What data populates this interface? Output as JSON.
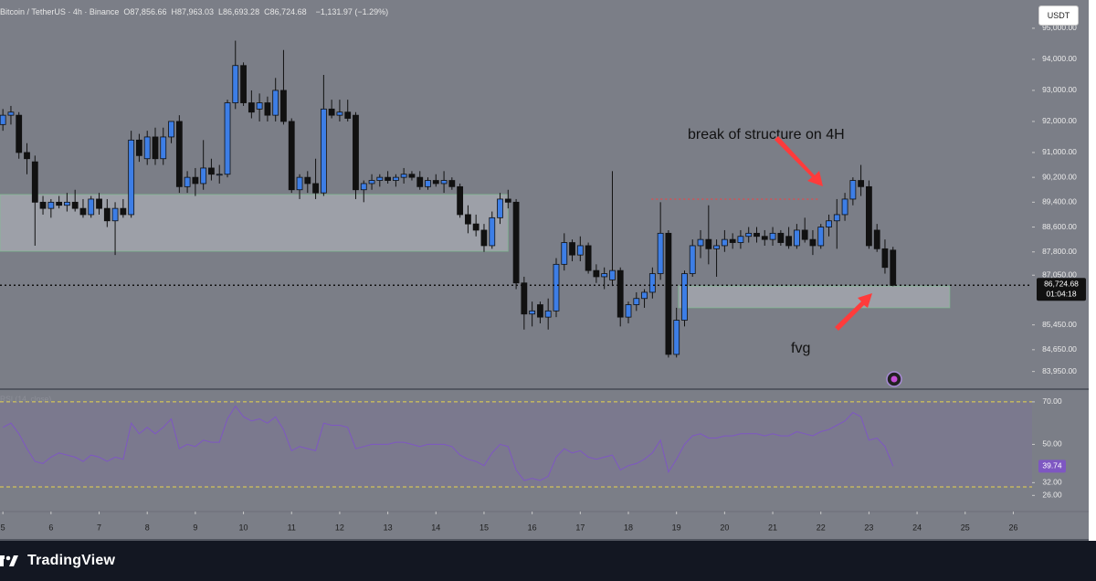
{
  "chart_data": {
    "type": "candlestick",
    "header": {
      "symbol": "Bitcoin / TetherUS · 4h · Binance",
      "ohlc": [
        {
          "label": "O",
          "value": "87,856.66"
        },
        {
          "label": "H",
          "value": "87,963.03"
        },
        {
          "label": "L",
          "value": "86,693.28"
        },
        {
          "label": "C",
          "value": "86,724.68"
        }
      ],
      "change": "−1,131.97 (−1.29%)"
    },
    "currency_button": "USDT",
    "annotations": [
      "break of structure on 4H",
      "fvg"
    ],
    "up_color": "#3d7ee6",
    "down_color": "#111111",
    "x": [
      5,
      5.167,
      5.333,
      5.5,
      5.667,
      5.833,
      6,
      6.167,
      6.333,
      6.5,
      6.667,
      6.833,
      7,
      7.167,
      7.333,
      7.5,
      7.667,
      7.833,
      8,
      8.167,
      8.333,
      8.5,
      8.667,
      8.833,
      9,
      9.167,
      9.333,
      9.5,
      9.667,
      9.833,
      10,
      10.167,
      10.333,
      10.5,
      10.667,
      10.833,
      11,
      11.167,
      11.333,
      11.5,
      11.667,
      11.833,
      12,
      12.167,
      12.333,
      12.5,
      12.667,
      12.833,
      13,
      13.167,
      13.333,
      13.5,
      13.667,
      13.833,
      14,
      14.167,
      14.333,
      14.5,
      14.667,
      14.833,
      15,
      15.167,
      15.333,
      15.5,
      15.667,
      15.833,
      16,
      16.167,
      16.333,
      16.5,
      16.667,
      16.833,
      17,
      17.167,
      17.333,
      17.5,
      17.667,
      17.833,
      18,
      18.167,
      18.333,
      18.5,
      18.667,
      18.833,
      19,
      19.167,
      19.333,
      19.5,
      19.667,
      19.833,
      20,
      20.167,
      20.333,
      20.5,
      20.667,
      20.833,
      21,
      21.167,
      21.333,
      21.5,
      21.667,
      21.833,
      22,
      22.167,
      22.333,
      22.5,
      22.667,
      22.833,
      23,
      23.167,
      23.333,
      23.5
    ],
    "open": [
      91900,
      92200,
      92200,
      91000,
      90700,
      89400,
      89200,
      89400,
      89300,
      89400,
      89200,
      89000,
      89500,
      89200,
      88800,
      89200,
      89000,
      91400,
      90800,
      91500,
      90800,
      91500,
      92000,
      89900,
      90200,
      90000,
      90500,
      90300,
      90300,
      92600,
      93800,
      92600,
      92400,
      92600,
      92200,
      93000,
      92000,
      89800,
      90200,
      90000,
      89700,
      92400,
      92200,
      92300,
      92200,
      89800,
      90000,
      90100,
      90200,
      90100,
      90200,
      90300,
      90200,
      89900,
      90100,
      90000,
      90100,
      89900,
      89000,
      88700,
      88500,
      88000,
      88900,
      89500,
      89400,
      86800,
      85800,
      86100,
      85700,
      85900,
      87400,
      88100,
      87700,
      88000,
      87200,
      87000,
      86900,
      87200,
      85700,
      86100,
      86300,
      86500,
      87100,
      88400,
      84500,
      85600,
      87100,
      88000,
      88200,
      87900,
      88000,
      88200,
      88100,
      88300,
      88400,
      88300,
      88200,
      88400,
      88300,
      88000,
      88500,
      88200,
      88000,
      88600,
      88800,
      89000,
      89500,
      90100,
      89900,
      88500,
      87900,
      87856.66
    ],
    "high": [
      92400,
      92500,
      92300,
      91300,
      90900,
      89600,
      89500,
      89600,
      89700,
      89800,
      89500,
      89600,
      89700,
      89500,
      89400,
      89500,
      91700,
      91600,
      91700,
      91800,
      91800,
      92000,
      92200,
      90400,
      90500,
      91400,
      90800,
      90600,
      92700,
      94600,
      93900,
      93000,
      92900,
      92800,
      93400,
      94300,
      92100,
      90300,
      90400,
      90800,
      93500,
      92700,
      92700,
      92700,
      92300,
      90100,
      90300,
      90300,
      90400,
      90300,
      90500,
      90400,
      90400,
      90200,
      90300,
      90400,
      90200,
      90000,
      89300,
      89000,
      88700,
      89100,
      89700,
      89800,
      89500,
      87000,
      86200,
      86200,
      86300,
      87600,
      88400,
      88200,
      88300,
      88100,
      87400,
      87300,
      90400,
      87300,
      86200,
      86500,
      86600,
      87300,
      89400,
      88500,
      86000,
      87200,
      88200,
      88500,
      89300,
      88200,
      88500,
      88400,
      88500,
      88600,
      88600,
      88500,
      88600,
      88500,
      88600,
      88700,
      88900,
      88500,
      88700,
      89000,
      89500,
      89700,
      90200,
      90600,
      90100,
      88700,
      88200,
      87963.03
    ],
    "low": [
      91700,
      91900,
      90800,
      90300,
      88000,
      89000,
      88900,
      89200,
      89100,
      89100,
      88900,
      88900,
      89000,
      88600,
      87700,
      88900,
      88900,
      90700,
      90600,
      90600,
      90600,
      91300,
      89700,
      89700,
      89600,
      89800,
      90100,
      90000,
      90200,
      92400,
      92500,
      92100,
      92000,
      92000,
      92000,
      91900,
      89700,
      89500,
      89700,
      89500,
      89600,
      92100,
      92000,
      92000,
      89500,
      89400,
      89800,
      89900,
      90000,
      89900,
      90000,
      90100,
      89800,
      89800,
      89900,
      89700,
      89800,
      88900,
      88400,
      88300,
      87800,
      87900,
      88700,
      89200,
      86600,
      85300,
      85400,
      85500,
      85300,
      85700,
      87200,
      87500,
      87500,
      87100,
      86800,
      86600,
      86700,
      85400,
      85500,
      85900,
      86000,
      86300,
      86900,
      84400,
      84400,
      85400,
      87000,
      87600,
      87400,
      87000,
      87800,
      87900,
      87900,
      88100,
      88100,
      88000,
      88000,
      88000,
      87900,
      87900,
      88100,
      87700,
      87900,
      88300,
      87900,
      88800,
      89300,
      89600,
      87900,
      87800,
      87100,
      86693.28
    ],
    "close": [
      92200,
      92300,
      91000,
      90800,
      89400,
      89200,
      89400,
      89300,
      89400,
      89200,
      89000,
      89500,
      89200,
      88800,
      89200,
      89000,
      91400,
      90900,
      91500,
      90800,
      91500,
      92000,
      89900,
      90200,
      90000,
      90500,
      90300,
      90300,
      92600,
      93800,
      92600,
      92300,
      92600,
      92200,
      93000,
      92000,
      89800,
      90200,
      90000,
      89700,
      92400,
      92200,
      92300,
      92100,
      89800,
      90000,
      90100,
      90200,
      90100,
      90200,
      90300,
      90200,
      89900,
      90100,
      90000,
      90100,
      89900,
      89000,
      88700,
      88500,
      88000,
      88900,
      89500,
      89400,
      86800,
      85800,
      85900,
      85700,
      85900,
      87400,
      88100,
      87700,
      88000,
      87200,
      87000,
      87100,
      87200,
      85700,
      86100,
      86300,
      86500,
      87100,
      88400,
      84500,
      85600,
      87100,
      88000,
      88200,
      87900,
      88000,
      88200,
      88100,
      88300,
      88400,
      88300,
      88200,
      88400,
      88100,
      88000,
      88500,
      88200,
      88000,
      88600,
      88800,
      89000,
      89500,
      90100,
      89900,
      88000,
      87900,
      87300,
      86724.68
    ],
    "ylim": [
      83410,
      95910
    ],
    "yticks": [
      {
        "value": 95000,
        "label": "95,000.00"
      },
      {
        "value": 94000,
        "label": "94,000.00"
      },
      {
        "value": 93000,
        "label": "93,000.00"
      },
      {
        "value": 92000,
        "label": "92,000.00"
      },
      {
        "value": 91000,
        "label": "91,000.00"
      },
      {
        "value": 90200,
        "label": "90,200.00"
      },
      {
        "value": 89400,
        "label": "89,400.00"
      },
      {
        "value": 88600,
        "label": "88,600.00"
      },
      {
        "value": 87800,
        "label": "87,800.00"
      },
      {
        "value": 87050,
        "label": "87,050.00"
      },
      {
        "value": 85450,
        "label": "85,450.00"
      },
      {
        "value": 84650,
        "label": "84,650.00"
      },
      {
        "value": 83950,
        "label": "83,950.00"
      }
    ],
    "xlim": [
      4.94,
      26.39
    ],
    "xticks": [
      5,
      6,
      7,
      8,
      9,
      10,
      11,
      12,
      13,
      14,
      15,
      16,
      17,
      18,
      19,
      20,
      21,
      22,
      23,
      24,
      25,
      26
    ],
    "zones": [
      {
        "x": [
          4.94,
          15.5
        ],
        "y": [
          87820,
          89650
        ]
      },
      {
        "x": [
          19.04,
          24.68
        ],
        "y": [
          86000,
          86700
        ]
      }
    ],
    "structure_level": {
      "x": [
        18.48,
        21.99
      ],
      "y": 89500
    },
    "last_price": {
      "value": 86724.68,
      "label": "86,724.68",
      "countdown": "01:04:18"
    },
    "rsi": {
      "legend": "RSI (14, close)",
      "color": "#7e57c2",
      "values": [
        58,
        60,
        55,
        48,
        42,
        41,
        44,
        46,
        45,
        44,
        42,
        45,
        44,
        42,
        44,
        43,
        60,
        55,
        58,
        55,
        58,
        62,
        48,
        50,
        49,
        52,
        51,
        51,
        62,
        68,
        63,
        61,
        62,
        60,
        63,
        57,
        47,
        49,
        48,
        47,
        60,
        59,
        59,
        58,
        48,
        49,
        50,
        50,
        50,
        51,
        51,
        50,
        49,
        50,
        50,
        50,
        49,
        45,
        43,
        42,
        40,
        46,
        50,
        49,
        38,
        33,
        34,
        33,
        35,
        44,
        48,
        46,
        47,
        44,
        43,
        44,
        45,
        38,
        40,
        41,
        43,
        46,
        52,
        37,
        43,
        50,
        54,
        55,
        53,
        53,
        54,
        54,
        55,
        55,
        55,
        54,
        55,
        54,
        54,
        56,
        55,
        54,
        56,
        57,
        59,
        61,
        65,
        63,
        52,
        53,
        49,
        39.74
      ],
      "ylim": [
        18.4,
        76.4
      ],
      "yticks": [
        {
          "value": 70,
          "label": "70.00"
        },
        {
          "value": 50,
          "label": "50.00"
        },
        {
          "value": 32,
          "label": "32.00"
        },
        {
          "value": 26,
          "label": "26.00"
        }
      ],
      "bands": [
        30,
        70
      ]
    },
    "footer": "TradingView"
  }
}
